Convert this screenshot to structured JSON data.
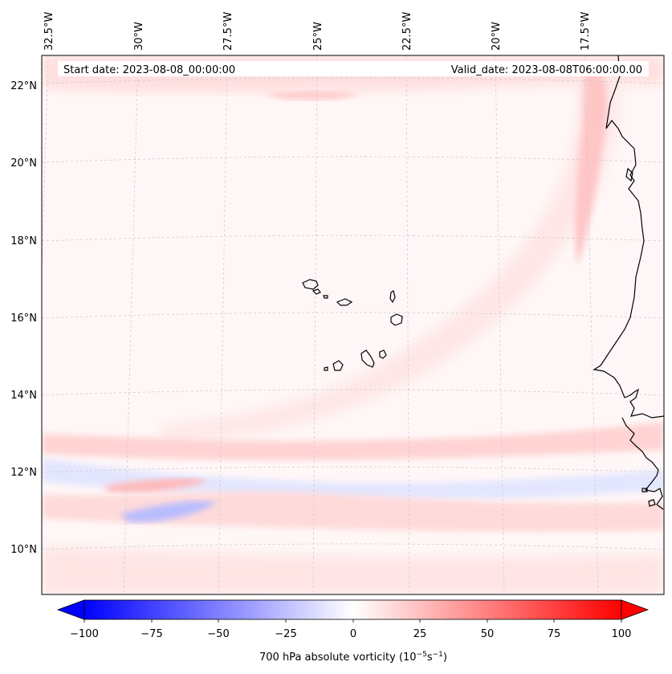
{
  "map": {
    "start_date": "Start date: 2023-08-08_00:00:00",
    "valid_date": "Valid_date: 2023-08-08T06:00:00.00",
    "lon_labels": [
      "32.5°W",
      "30°W",
      "27.5°W",
      "25°W",
      "22.5°W",
      "20°W",
      "17.5°W"
    ],
    "lat_labels": [
      "22°N",
      "20°N",
      "18°N",
      "16°N",
      "14°N",
      "12°N",
      "10°N"
    ]
  },
  "colorbar": {
    "ticks": [
      "−100",
      "−75",
      "−50",
      "−25",
      "0",
      "25",
      "50",
      "75",
      "100"
    ],
    "label": "700 hPa absolute vorticity (10",
    "label_exp1": "−5",
    "label_mid": "s",
    "label_exp2": "−1",
    "label_end": ")",
    "min": -100,
    "max": 100,
    "colors": {
      "neg": "#0000ff",
      "zero": "#ffffff",
      "pos": "#ff0000"
    }
  }
}
